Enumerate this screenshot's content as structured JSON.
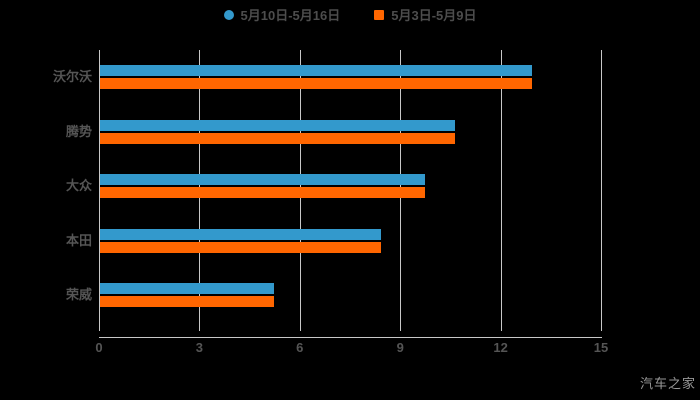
{
  "chart_data": {
    "type": "bar",
    "orientation": "horizontal",
    "title": "",
    "categories": [
      "沃尔沃",
      "腾势",
      "大众",
      "本田",
      "荣威"
    ],
    "series": [
      {
        "name": "5月10日-5月16日",
        "color": "#3399cc",
        "marker": "circle",
        "values": [
          12.9,
          10.6,
          9.7,
          8.4,
          5.2
        ]
      },
      {
        "name": "5月3日-5月9日",
        "color": "#ff6600",
        "marker": "square",
        "values": [
          12.9,
          10.6,
          9.7,
          8.4,
          5.2
        ]
      }
    ],
    "xlabel": "",
    "ylabel": "",
    "xlim": [
      0,
      15
    ],
    "x_ticks": [
      "0",
      "3",
      "6",
      "9",
      "12",
      "15"
    ],
    "grid": true,
    "legend_position": "top-center",
    "colors": {
      "background": "#000000",
      "axis": "#c8c8c8",
      "gridline": "#c8c8c8",
      "labels": "#555555",
      "legend_text": "#4d4d4d"
    }
  },
  "watermark": {
    "text": "汽车之家",
    "color": "#999999"
  }
}
